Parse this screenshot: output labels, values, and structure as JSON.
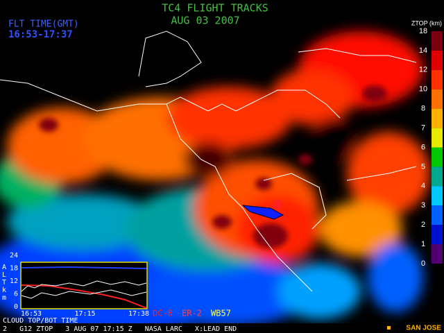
{
  "header": {
    "title": "TC4 FLIGHT TRACKS",
    "date": "AUG 03 2007"
  },
  "flight_time": {
    "label": "FLT TIME(GMT)",
    "range": "16:53-17:37"
  },
  "colorbar": {
    "title": "ZTOP (km)",
    "labels": [
      "18",
      "14",
      "12",
      "10",
      "8",
      "7",
      "6",
      "5",
      "4",
      "3",
      "2",
      "1",
      "0"
    ],
    "colors": [
      "#7a0010",
      "#e00000",
      "#ff3000",
      "#ff7000",
      "#ffb000",
      "#e8e800",
      "#00c800",
      "#00a890",
      "#00c8ff",
      "#0060ff",
      "#0010d0",
      "#500070"
    ]
  },
  "inset": {
    "y_label_letters": [
      "A",
      "L",
      "T",
      "k",
      "m"
    ],
    "yticks": [
      "24",
      "18",
      "12",
      "6",
      "0"
    ],
    "xticks": [
      "16:53",
      "17:15",
      "17:38"
    ]
  },
  "aircraft": [
    {
      "name": "DC-8",
      "color": "#ff2020"
    },
    {
      "name": "ER-2",
      "color": "#ff4040"
    },
    {
      "name": "WB57",
      "color": "#ffff60"
    }
  ],
  "footer": {
    "caption": "CLOUD TOP/BOT TIME",
    "info": "2   G12 ZTOP   3 AUG 07 17:15 Z   NASA LARC   X:LEAD END",
    "station": "SAN JOSE"
  }
}
